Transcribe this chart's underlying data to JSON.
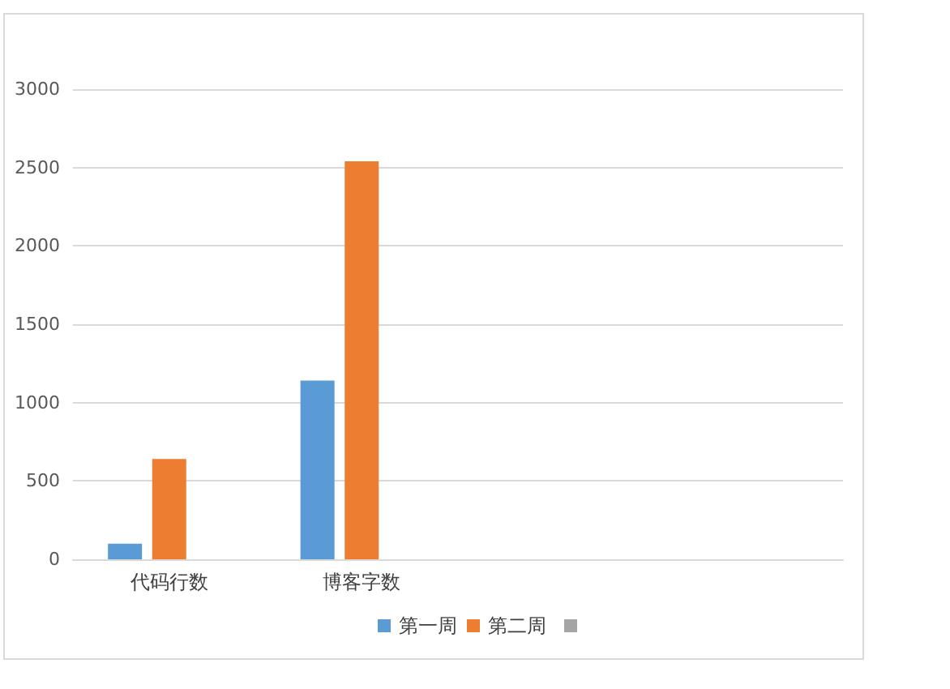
{
  "chart_data": {
    "type": "bar",
    "categories": [
      "代码行数",
      "博客字数",
      null,
      null
    ],
    "series": [
      {
        "name": "第一周",
        "color": "#5b9bd5",
        "values": [
          100,
          1140,
          null,
          null
        ]
      },
      {
        "name": "第二周",
        "color": "#ed7d31",
        "values": [
          640,
          2540,
          null,
          null
        ]
      },
      {
        "color": "#a5a5a5",
        "values": [
          null,
          null,
          null,
          null
        ]
      }
    ],
    "ylim": [
      0,
      3000
    ],
    "yticks": [
      0,
      500,
      1000,
      1500,
      2000,
      2500,
      3000
    ],
    "grid": "y",
    "legend": "bottom"
  }
}
